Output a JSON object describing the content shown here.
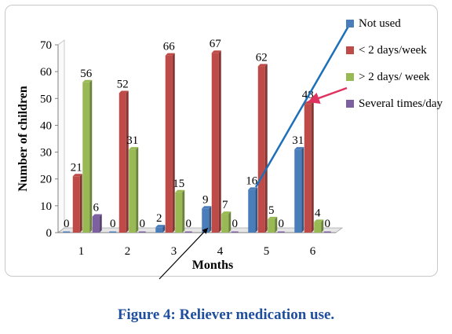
{
  "chart_data": {
    "type": "bar",
    "categories": [
      "1",
      "2",
      "3",
      "4",
      "5",
      "6"
    ],
    "series": [
      {
        "name": "Not used",
        "color": "#4a7ebb",
        "values": [
          0,
          0,
          2,
          9,
          16,
          31
        ]
      },
      {
        "name": "< 2 days/week",
        "color": "#be4b48",
        "values": [
          21,
          52,
          66,
          67,
          62,
          48
        ]
      },
      {
        "name": "> 2 days/ week",
        "color": "#98b954",
        "values": [
          56,
          31,
          15,
          7,
          5,
          4
        ]
      },
      {
        "name": "Several times/day",
        "color": "#7d60a0",
        "values": [
          6,
          0,
          0,
          0,
          0,
          0
        ]
      }
    ],
    "xlabel": "Months",
    "ylabel": "Number of children",
    "ylim": [
      0,
      70
    ],
    "yticks": [
      "0",
      "10",
      "20",
      "30",
      "40",
      "50",
      "60",
      "70"
    ],
    "legend_position": "right"
  },
  "legend": {
    "items": [
      {
        "label": "Not used",
        "color": "#4a7ebb"
      },
      {
        "label": "< 2 days/week",
        "color": "#be4b48"
      },
      {
        "label": "> 2 days/ week",
        "color": "#98b954"
      },
      {
        "label": "Several times/day",
        "color": "#7d60a0"
      }
    ]
  },
  "caption": "Figure 4: Reliever medication use."
}
